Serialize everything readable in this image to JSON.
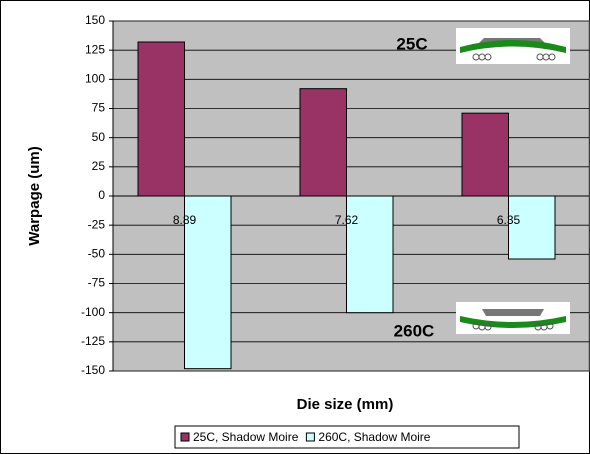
{
  "chart_data": {
    "type": "bar",
    "x_label": "Die size (mm)",
    "y_label": "Warpage (um)",
    "categories": [
      "8.89",
      "7.62",
      "6.35"
    ],
    "series": [
      {
        "name": "25C, Shadow Moire",
        "color": "#993366",
        "values": [
          132,
          92,
          71
        ]
      },
      {
        "name": "260C, Shadow Moire",
        "color": "#ccffff",
        "values": [
          -148,
          -100,
          -54
        ]
      }
    ],
    "annotations": [
      "25C",
      "260C"
    ],
    "ylim": [
      -150,
      150
    ],
    "yticks": [
      -150,
      -125,
      -100,
      -75,
      -50,
      -25,
      0,
      25,
      50,
      75,
      100,
      125,
      150
    ],
    "grid": true,
    "legend": "bottom"
  }
}
